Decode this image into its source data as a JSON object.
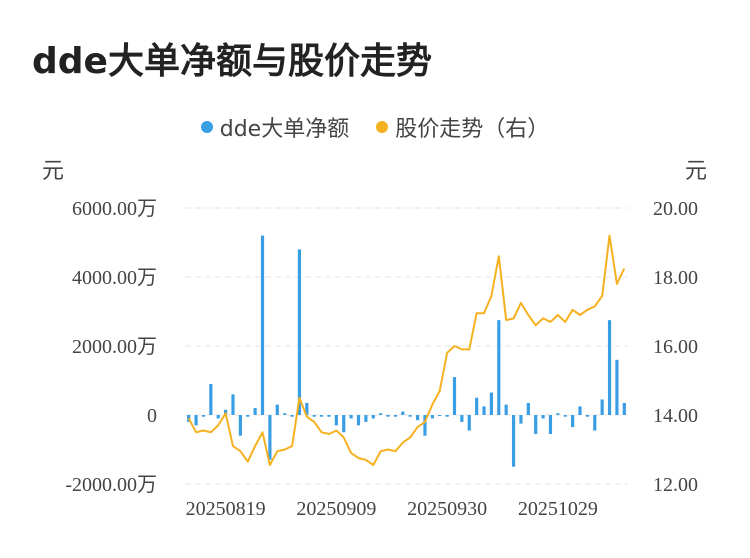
{
  "title": "dde大单净额与股价走势",
  "colors": {
    "bar": "#3a9ee4",
    "line": "#f5b120",
    "grid": "#e6e6e6",
    "text": "#444444"
  },
  "chart_data": {
    "type": "bar+line",
    "legend": [
      {
        "name": "dde大单净额",
        "color": "#3a9ee4",
        "marker": "circle"
      },
      {
        "name": "股价走势（右）",
        "color": "#f5b120",
        "marker": "circle"
      }
    ],
    "left_axis": {
      "unit": "元",
      "min": -2000,
      "max": 6000,
      "ticks": [
        -2000,
        0,
        2000,
        4000,
        6000
      ],
      "tick_labels": [
        "-2000.00万",
        "0",
        "2000.00万",
        "4000.00万",
        "6000.00万"
      ]
    },
    "right_axis": {
      "unit": "元",
      "min": 12,
      "max": 20,
      "ticks": [
        12,
        14,
        16,
        18,
        20
      ],
      "tick_labels": [
        "12.00",
        "14.00",
        "16.00",
        "18.00",
        "20.00"
      ]
    },
    "x_tick_labels": [
      "20250819",
      "20250909",
      "20250930",
      "20251029"
    ],
    "x_tick_index": [
      5,
      20,
      35,
      50
    ],
    "series": [
      {
        "name": "dde大单净额",
        "axis": "left",
        "values_wan": [
          -200,
          -300,
          -50,
          900,
          -100,
          150,
          600,
          -600,
          -50,
          200,
          5200,
          -1300,
          300,
          50,
          -50,
          4800,
          350,
          -50,
          -50,
          -50,
          -300,
          -500,
          -100,
          -300,
          -200,
          -100,
          50,
          -50,
          -50,
          100,
          -50,
          -150,
          -600,
          -100,
          0,
          -50,
          1100,
          -200,
          -450,
          500,
          250,
          650,
          2750,
          300,
          -1500,
          -250,
          350,
          -550,
          -100,
          -550,
          50,
          -50,
          -350,
          250,
          -50,
          -450,
          450,
          2750,
          1600,
          350
        ]
      },
      {
        "name": "股价走势（右）",
        "axis": "right",
        "values": [
          13.9,
          13.5,
          13.55,
          13.5,
          13.7,
          14.05,
          13.1,
          12.95,
          12.65,
          13.1,
          13.5,
          12.55,
          12.95,
          13.0,
          13.1,
          14.5,
          13.95,
          13.8,
          13.5,
          13.45,
          13.55,
          13.35,
          12.9,
          12.75,
          12.7,
          12.55,
          12.95,
          13.0,
          12.95,
          13.2,
          13.35,
          13.65,
          13.8,
          14.3,
          14.7,
          15.8,
          16.0,
          15.9,
          15.9,
          16.95,
          16.95,
          17.45,
          18.6,
          16.75,
          16.8,
          17.25,
          16.9,
          16.6,
          16.8,
          16.7,
          16.9,
          16.7,
          17.05,
          16.9,
          17.05,
          17.15,
          17.45,
          19.2,
          17.8,
          18.25
        ]
      }
    ]
  }
}
